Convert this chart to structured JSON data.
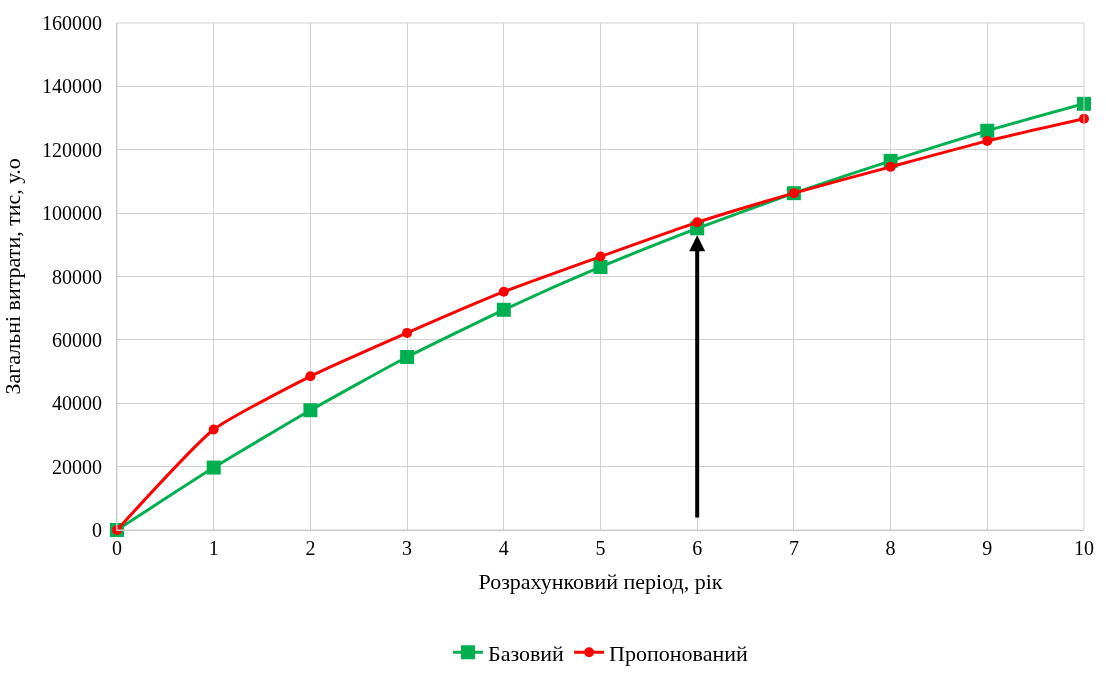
{
  "chart_data": {
    "type": "line",
    "xlabel": "Розрахунковий період, рік",
    "ylabel": "Загальні витрати, тис, у.о",
    "x": [
      0,
      1,
      2,
      3,
      4,
      5,
      6,
      7,
      8,
      9,
      10
    ],
    "series": [
      {
        "name": "Базовий",
        "color": "#00b050",
        "marker": "square",
        "values": [
          0,
          19700,
          37800,
          54600,
          69500,
          83000,
          95200,
          106300,
          116500,
          126000,
          134500
        ]
      },
      {
        "name": "Пропонований",
        "color": "#ff0000",
        "marker": "circle",
        "values": [
          0,
          31700,
          48500,
          62200,
          75200,
          86300,
          97100,
          106300,
          114600,
          122800,
          129800
        ]
      }
    ],
    "xlim": [
      0,
      10
    ],
    "xticks": [
      0,
      1,
      2,
      3,
      4,
      5,
      6,
      7,
      8,
      9,
      10
    ],
    "ylim": [
      0,
      160000
    ],
    "yticks": [
      0,
      20000,
      40000,
      60000,
      80000,
      100000,
      120000,
      140000,
      160000
    ],
    "grid": true,
    "legend": "bottom",
    "line_style": "solid"
  }
}
